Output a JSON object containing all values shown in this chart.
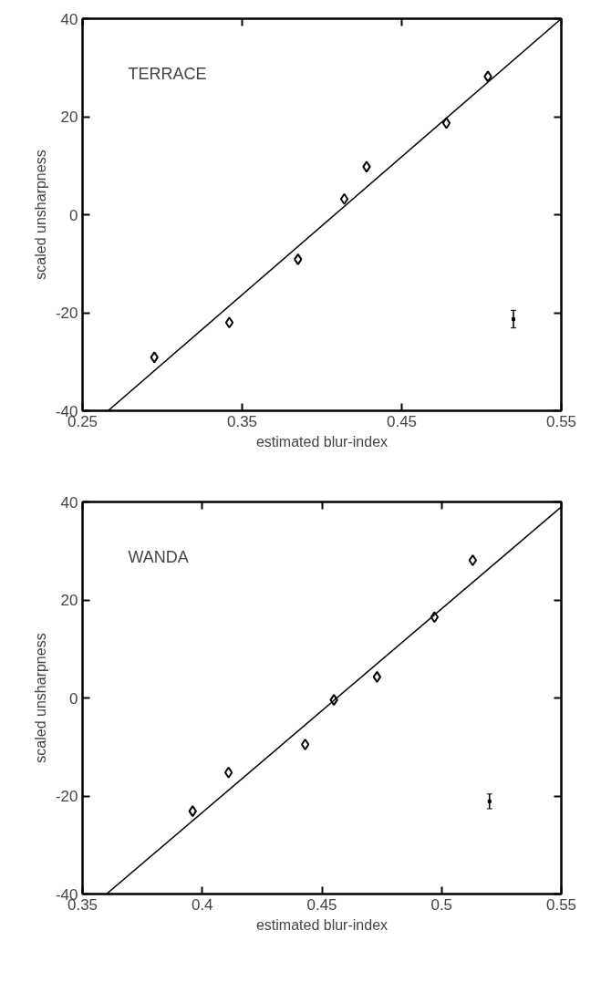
{
  "chart_data": [
    {
      "type": "scatter",
      "xlabel": "estimated blur-index",
      "ylabel": "scaled unsharpness",
      "annotations": [
        "TERRACE"
      ],
      "marker": "diamond",
      "grid": false,
      "xlim": [
        0.25,
        0.55
      ],
      "xticks": [
        0.25,
        0.35,
        0.45,
        0.55
      ],
      "ylim": [
        -40,
        40
      ],
      "yticks": [
        -40,
        -20,
        0,
        20,
        40
      ],
      "series": [
        {
          "color": "#000000",
          "x": [
            0.295,
            0.342,
            0.385,
            0.414,
            0.428,
            0.478,
            0.504
          ],
          "values": [
            -29.1,
            -22.0,
            -9.1,
            3.2,
            9.8,
            18.7,
            28.2
          ]
        },
        {
          "type": "line",
          "marker": "none",
          "color": "#000000",
          "x": [
            0.266,
            0.55
          ],
          "values": [
            -40,
            40
          ]
        },
        {
          "marker": "square",
          "color": "#000000",
          "x": [
            0.52
          ],
          "values": [
            -21.3
          ],
          "errors": [
            1.8
          ]
        }
      ]
    },
    {
      "type": "scatter",
      "xlabel": "estimated blur-index",
      "ylabel": "scaled unsharpness",
      "annotations": [
        "WANDA"
      ],
      "marker": "diamond",
      "grid": false,
      "xlim": [
        0.35,
        0.55
      ],
      "xticks": [
        0.35,
        0.4,
        0.45,
        0.5,
        0.55
      ],
      "ylim": [
        -40,
        40
      ],
      "yticks": [
        -40,
        -20,
        0,
        20,
        40
      ],
      "series": [
        {
          "color": "#000000",
          "x": [
            0.396,
            0.411,
            0.443,
            0.455,
            0.473,
            0.497,
            0.513
          ],
          "values": [
            -23.1,
            -15.2,
            -9.5,
            -0.4,
            4.3,
            16.5,
            28.1
          ]
        },
        {
          "type": "line",
          "marker": "none",
          "color": "#000000",
          "x": [
            0.36,
            0.55
          ],
          "values": [
            -40,
            39.0
          ]
        },
        {
          "marker": "square",
          "color": "#000000",
          "x": [
            0.52
          ],
          "values": [
            -21.1
          ],
          "errors": [
            1.5
          ]
        }
      ]
    }
  ]
}
